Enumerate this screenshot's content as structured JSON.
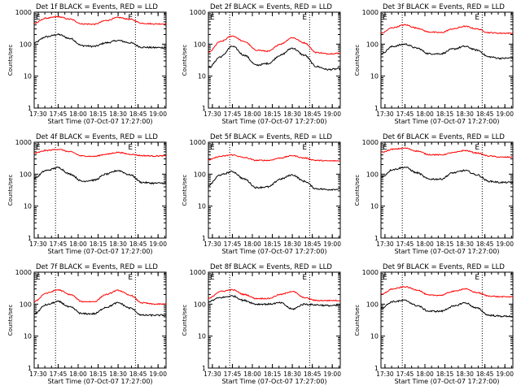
{
  "figure": {
    "ylabel": "Counts/sec",
    "xlabel": "Start Time (07-Oct-07 17:27:00)",
    "ytick_labels": [
      "1",
      "10",
      "100",
      "1000"
    ],
    "xtick_labels": [
      "17:30",
      "17:45",
      "18:00",
      "18:15",
      "18:30",
      "18:45",
      "19:00"
    ],
    "marker_labels": [
      "E",
      "E"
    ],
    "colors": {
      "events": "#000000",
      "lld": "#ff0000",
      "axes": "#000000"
    }
  },
  "chart_data": [
    {
      "type": "line",
      "title": "Det 1f BLACK = Events, RED = LLD",
      "xlabel": "Start Time (07-Oct-07 17:27:00)",
      "ylabel": "Counts/sec",
      "yscale": "log",
      "ylim": [
        1,
        1000
      ],
      "xlim": [
        "17:27",
        "19:06"
      ],
      "markers": [
        "17:43",
        "18:43"
      ],
      "grid": "dotted vertical markers",
      "x": [
        "17:27",
        "17:36",
        "17:45",
        "17:54",
        "18:03",
        "18:12",
        "18:21",
        "18:30",
        "18:39",
        "18:48",
        "18:57",
        "19:06"
      ],
      "series": [
        {
          "name": "Events",
          "color": "#000000",
          "values": [
            110,
            170,
            200,
            150,
            90,
            85,
            110,
            130,
            110,
            80,
            78,
            78
          ]
        },
        {
          "name": "LLD",
          "color": "#ff0000",
          "values": [
            450,
            650,
            720,
            600,
            430,
            420,
            550,
            680,
            600,
            450,
            430,
            430
          ]
        }
      ]
    },
    {
      "type": "line",
      "title": "Det 2f BLACK = Events, RED = LLD",
      "xlabel": "Start Time (07-Oct-07 17:27:00)",
      "ylabel": "Counts/sec",
      "yscale": "log",
      "ylim": [
        1,
        1000
      ],
      "xlim": [
        "17:27",
        "19:06"
      ],
      "markers": [
        "17:43",
        "18:43"
      ],
      "grid": "dotted vertical markers",
      "x": [
        "17:27",
        "17:36",
        "17:45",
        "17:54",
        "18:03",
        "18:12",
        "18:21",
        "18:30",
        "18:39",
        "18:48",
        "18:57",
        "19:06"
      ],
      "series": [
        {
          "name": "Events",
          "color": "#000000",
          "values": [
            18,
            40,
            85,
            45,
            22,
            25,
            45,
            75,
            45,
            20,
            16,
            17
          ]
        },
        {
          "name": "LLD",
          "color": "#ff0000",
          "values": [
            55,
            120,
            180,
            120,
            65,
            60,
            100,
            160,
            110,
            55,
            50,
            52
          ]
        }
      ]
    },
    {
      "type": "line",
      "title": "Det 3f BLACK = Events, RED = LLD",
      "xlabel": "Start Time (07-Oct-07 17:27:00)",
      "ylabel": "Counts/sec",
      "yscale": "log",
      "ylim": [
        1,
        1000
      ],
      "xlim": [
        "17:27",
        "19:06"
      ],
      "markers": [
        "17:43",
        "18:43"
      ],
      "grid": "dotted vertical markers",
      "x": [
        "17:27",
        "17:36",
        "17:45",
        "17:54",
        "18:03",
        "18:12",
        "18:21",
        "18:30",
        "18:39",
        "18:48",
        "18:57",
        "19:06"
      ],
      "series": [
        {
          "name": "Events",
          "color": "#000000",
          "values": [
            50,
            85,
            100,
            75,
            50,
            50,
            70,
            85,
            65,
            40,
            36,
            37
          ]
        },
        {
          "name": "LLD",
          "color": "#ff0000",
          "values": [
            220,
            330,
            400,
            320,
            240,
            230,
            300,
            360,
            300,
            230,
            220,
            220
          ]
        }
      ]
    },
    {
      "type": "line",
      "title": "Det 4f BLACK = Events, RED = LLD",
      "xlabel": "Start Time (07-Oct-07 17:27:00)",
      "ylabel": "Counts/sec",
      "yscale": "log",
      "ylim": [
        1,
        1000
      ],
      "xlim": [
        "17:27",
        "19:06"
      ],
      "markers": [
        "17:43",
        "18:43"
      ],
      "grid": "dotted vertical markers",
      "x": [
        "17:27",
        "17:36",
        "17:45",
        "17:54",
        "18:03",
        "18:12",
        "18:21",
        "18:30",
        "18:39",
        "18:48",
        "18:57",
        "19:06"
      ],
      "series": [
        {
          "name": "Events",
          "color": "#000000",
          "values": [
            75,
            130,
            160,
            100,
            60,
            65,
            100,
            130,
            95,
            55,
            52,
            53
          ]
        },
        {
          "name": "LLD",
          "color": "#ff0000",
          "values": [
            450,
            550,
            600,
            500,
            370,
            360,
            420,
            480,
            420,
            380,
            370,
            375
          ]
        }
      ]
    },
    {
      "type": "line",
      "title": "Det 5f BLACK = Events, RED = LLD",
      "xlabel": "Start Time (07-Oct-07 17:27:00)",
      "ylabel": "Counts/sec",
      "yscale": "log",
      "ylim": [
        1,
        1000
      ],
      "xlim": [
        "17:27",
        "19:06"
      ],
      "markers": [
        "17:43",
        "18:43"
      ],
      "grid": "dotted vertical markers",
      "x": [
        "17:27",
        "17:36",
        "17:45",
        "17:54",
        "18:03",
        "18:12",
        "18:21",
        "18:30",
        "18:39",
        "18:48",
        "18:57",
        "19:06"
      ],
      "series": [
        {
          "name": "Events",
          "color": "#000000",
          "values": [
            45,
            95,
            120,
            70,
            38,
            40,
            70,
            95,
            60,
            35,
            33,
            34
          ]
        },
        {
          "name": "LLD",
          "color": "#ff0000",
          "values": [
            280,
            360,
            400,
            330,
            270,
            270,
            320,
            380,
            320,
            270,
            260,
            260
          ]
        }
      ]
    },
    {
      "type": "line",
      "title": "Det 6f BLACK = Events, RED = LLD",
      "xlabel": "Start Time (07-Oct-07 17:27:00)",
      "ylabel": "Counts/sec",
      "yscale": "log",
      "ylim": [
        1,
        1000
      ],
      "xlim": [
        "17:27",
        "19:06"
      ],
      "markers": [
        "17:43",
        "18:43"
      ],
      "grid": "dotted vertical markers",
      "x": [
        "17:27",
        "17:36",
        "17:45",
        "17:54",
        "18:03",
        "18:12",
        "18:21",
        "18:30",
        "18:39",
        "18:48",
        "18:57",
        "19:06"
      ],
      "series": [
        {
          "name": "Events",
          "color": "#000000",
          "values": [
            80,
            140,
            165,
            110,
            70,
            70,
            110,
            130,
            95,
            60,
            55,
            55
          ]
        },
        {
          "name": "LLD",
          "color": "#ff0000",
          "values": [
            480,
            600,
            650,
            530,
            410,
            400,
            470,
            550,
            460,
            370,
            340,
            340
          ]
        }
      ]
    },
    {
      "type": "line",
      "title": "Det 7f BLACK = Events, RED = LLD",
      "xlabel": "Start Time (07-Oct-07 17:27:00)",
      "ylabel": "Counts/sec",
      "yscale": "log",
      "ylim": [
        1,
        1000
      ],
      "xlim": [
        "17:27",
        "19:06"
      ],
      "markers": [
        "17:43",
        "18:43"
      ],
      "grid": "dotted vertical markers",
      "x": [
        "17:27",
        "17:36",
        "17:45",
        "17:54",
        "18:03",
        "18:12",
        "18:21",
        "18:30",
        "18:39",
        "18:48",
        "18:57",
        "19:06"
      ],
      "series": [
        {
          "name": "Events",
          "color": "#000000",
          "values": [
            50,
            95,
            120,
            80,
            50,
            50,
            80,
            110,
            75,
            45,
            45,
            45
          ]
        },
        {
          "name": "LLD",
          "color": "#ff0000",
          "values": [
            120,
            220,
            280,
            200,
            120,
            120,
            200,
            270,
            190,
            110,
            100,
            100
          ]
        }
      ]
    },
    {
      "type": "line",
      "title": "Det 8f BLACK = Events, RED = LLD",
      "xlabel": "Start Time (07-Oct-07 17:27:00)",
      "ylabel": "Counts/sec",
      "yscale": "log",
      "ylim": [
        1,
        1000
      ],
      "xlim": [
        "17:27",
        "19:06"
      ],
      "markers": [
        "17:43",
        "18:43"
      ],
      "grid": "dotted vertical markers",
      "x": [
        "17:27",
        "17:36",
        "17:45",
        "17:54",
        "18:03",
        "18:12",
        "18:21",
        "18:30",
        "18:39",
        "18:48",
        "18:57",
        "19:06"
      ],
      "series": [
        {
          "name": "Events",
          "color": "#000000",
          "values": [
            120,
            160,
            180,
            130,
            100,
            100,
            110,
            70,
            100,
            95,
            90,
            90
          ]
        },
        {
          "name": "LLD",
          "color": "#ff0000",
          "values": [
            150,
            250,
            280,
            200,
            150,
            150,
            200,
            250,
            160,
            130,
            130,
            130
          ]
        }
      ]
    },
    {
      "type": "line",
      "title": "Det 9f BLACK = Events, RED = LLD",
      "xlabel": "Start Time (07-Oct-07 17:27:00)",
      "ylabel": "Counts/sec",
      "yscale": "log",
      "ylim": [
        1,
        1000
      ],
      "xlim": [
        "17:27",
        "19:06"
      ],
      "markers": [
        "17:43",
        "18:43"
      ],
      "grid": "dotted vertical markers",
      "x": [
        "17:27",
        "17:36",
        "17:45",
        "17:54",
        "18:03",
        "18:12",
        "18:21",
        "18:30",
        "18:39",
        "18:48",
        "18:57",
        "19:06"
      ],
      "series": [
        {
          "name": "Events",
          "color": "#000000",
          "values": [
            75,
            120,
            130,
            90,
            60,
            60,
            85,
            110,
            75,
            45,
            42,
            42
          ]
        },
        {
          "name": "LLD",
          "color": "#ff0000",
          "values": [
            200,
            300,
            350,
            280,
            190,
            190,
            250,
            300,
            230,
            180,
            170,
            170
          ]
        }
      ]
    }
  ]
}
